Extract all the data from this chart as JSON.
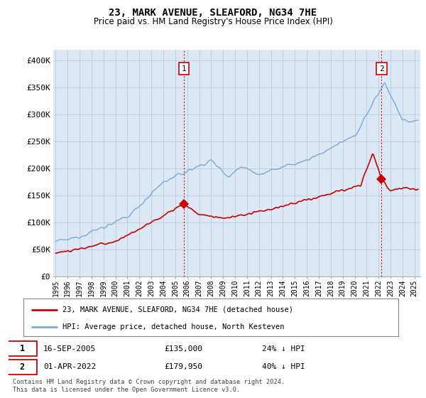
{
  "title": "23, MARK AVENUE, SLEAFORD, NG34 7HE",
  "subtitle": "Price paid vs. HM Land Registry's House Price Index (HPI)",
  "ylabel_ticks": [
    "£0",
    "£50K",
    "£100K",
    "£150K",
    "£200K",
    "£250K",
    "£300K",
    "£350K",
    "£400K"
  ],
  "ytick_values": [
    0,
    50000,
    100000,
    150000,
    200000,
    250000,
    300000,
    350000,
    400000
  ],
  "ylim": [
    0,
    420000
  ],
  "xlim_start": 1994.8,
  "xlim_end": 2025.5,
  "hpi_color": "#7aabdc",
  "price_color": "#cc0000",
  "plot_bg_color": "#dce9f5",
  "marker1_x": 2005.71,
  "marker1_y": 135000,
  "marker2_x": 2022.25,
  "marker2_y": 179950,
  "legend_label_red": "23, MARK AVENUE, SLEAFORD, NG34 7HE (detached house)",
  "legend_label_blue": "HPI: Average price, detached house, North Kesteven",
  "table_row1": [
    "1",
    "16-SEP-2005",
    "£135,000",
    "24% ↓ HPI"
  ],
  "table_row2": [
    "2",
    "01-APR-2022",
    "£179,950",
    "40% ↓ HPI"
  ],
  "footer": "Contains HM Land Registry data © Crown copyright and database right 2024.\nThis data is licensed under the Open Government Licence v3.0.",
  "background_color": "#ffffff",
  "grid_color": "#c0d0e0"
}
